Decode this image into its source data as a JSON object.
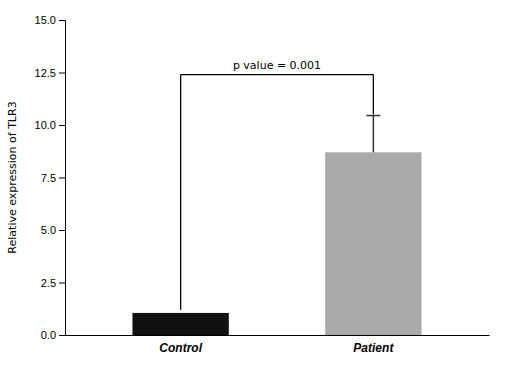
{
  "chart_data": {
    "type": "bar",
    "categories": [
      "Control",
      "Patient"
    ],
    "values": [
      1.05,
      8.7
    ],
    "colors": [
      "#111111",
      "#aaaaaa"
    ],
    "error_upper": [
      null,
      1.75
    ],
    "ylabel": "Relative expression of TLR3",
    "ylim": [
      0,
      15.0
    ],
    "yticks": [
      {
        "value": 0.0,
        "label": "0.0"
      },
      2.5,
      {
        "value": 5.0,
        "label": "5.0"
      },
      7.5,
      {
        "value": 10.0,
        "label": "10.0"
      },
      12.5,
      {
        "value": 15.0,
        "label": "15.0"
      }
    ],
    "annotations": [
      {
        "text": "p value = 0.001",
        "from": "Control",
        "to": "Patient",
        "y": 12.4,
        "left_drop": 1.2,
        "right_drop": 10.5
      }
    ],
    "grid": false
  }
}
